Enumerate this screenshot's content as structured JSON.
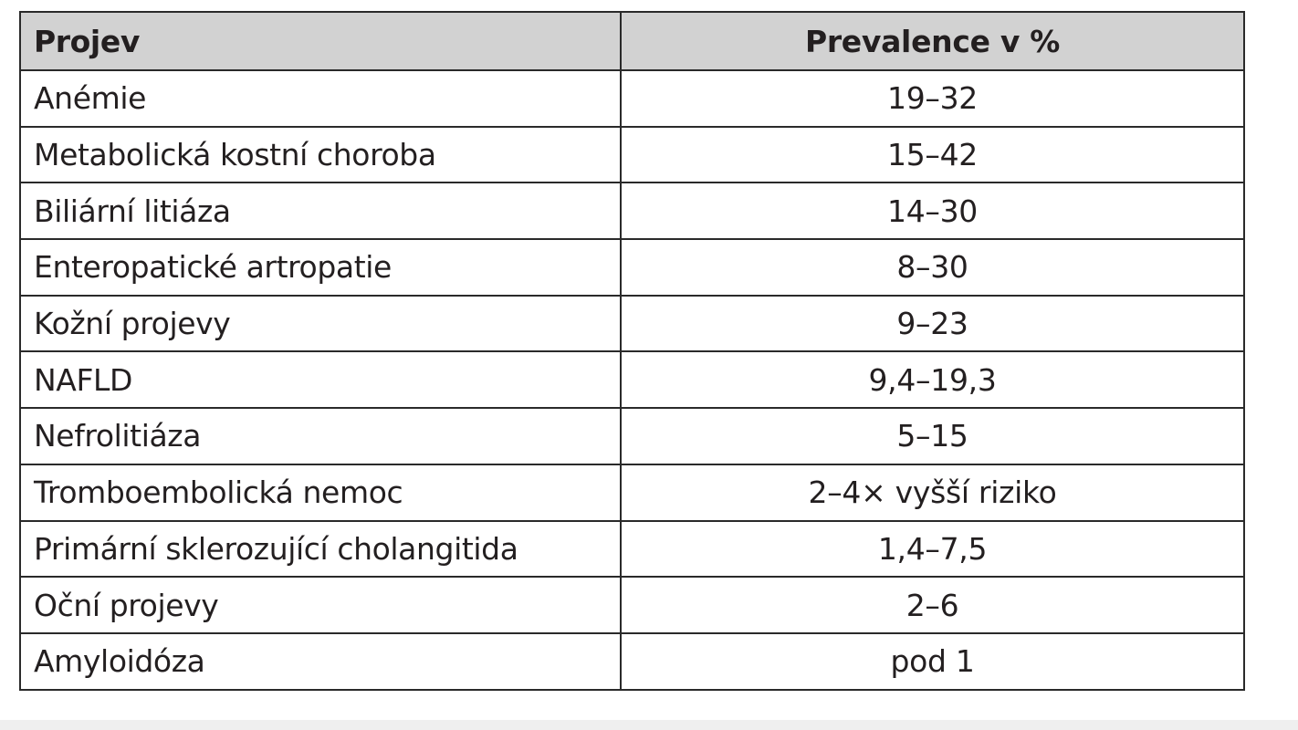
{
  "table": {
    "headers": {
      "projev": "Projev",
      "prevalence": "Prevalence v %"
    },
    "rows": [
      {
        "projev": "Anémie",
        "prevalence": "19–32"
      },
      {
        "projev": "Metabolická kostní choroba",
        "prevalence": "15–42"
      },
      {
        "projev": "Biliární litiáza",
        "prevalence": "14–30"
      },
      {
        "projev": "Enteropatické artropatie",
        "prevalence": "8–30"
      },
      {
        "projev": "Kožní projevy",
        "prevalence": "9–23"
      },
      {
        "projev": "NAFLD",
        "prevalence": "9,4–19,3"
      },
      {
        "projev": "Nefrolitiáza",
        "prevalence": "5–15"
      },
      {
        "projev": "Tromboembolická nemoc",
        "prevalence": "2–4× vyšší riziko"
      },
      {
        "projev": "Primární sklerozující cholangitida",
        "prevalence": "1,4–7,5"
      },
      {
        "projev": "Oční projevy",
        "prevalence": "2–6"
      },
      {
        "projev": "Amyloidóza",
        "prevalence": "pod 1"
      }
    ]
  },
  "colors": {
    "header_background": "#d2d2d2",
    "border": "#2a2a2a",
    "text": "#231f20",
    "bottom_strip": "#efefef"
  }
}
